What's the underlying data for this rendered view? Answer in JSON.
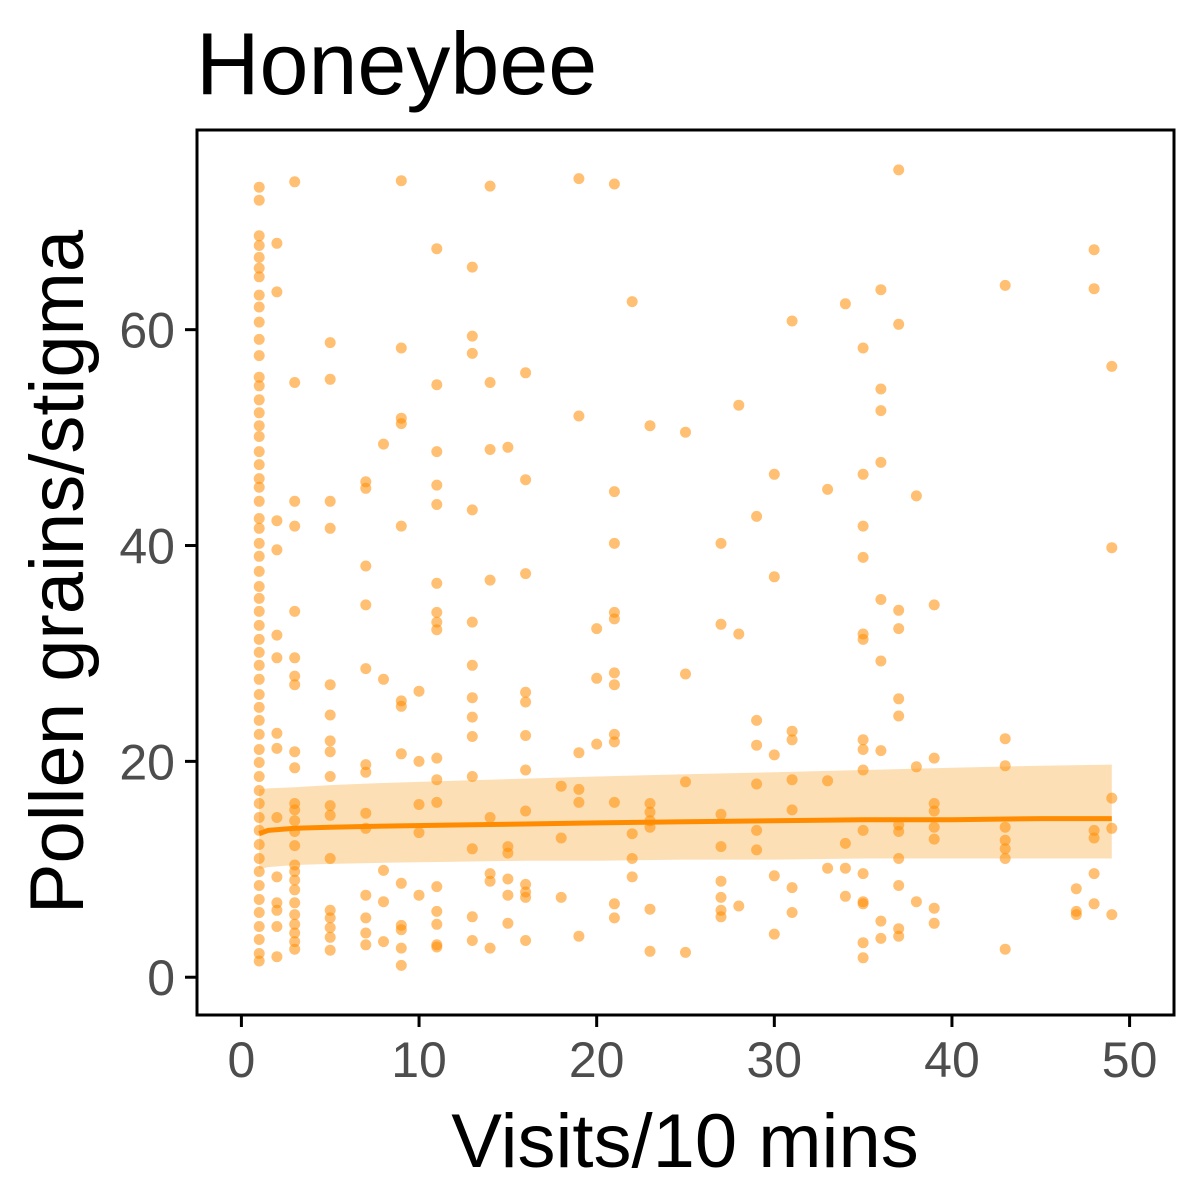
{
  "chart_data": {
    "type": "scatter",
    "title": "Honeybee",
    "xlabel": "Visits/10 mins",
    "ylabel": "Pollen grains/stigma",
    "xlim": [
      -2.5,
      52.5
    ],
    "ylim": [
      -3.5,
      78.5
    ],
    "xticks": [
      0,
      10,
      20,
      30,
      40,
      50
    ],
    "yticks": [
      0,
      20,
      40,
      60
    ],
    "xtick_labels": [
      "0",
      "10",
      "20",
      "30",
      "40",
      "50"
    ],
    "ytick_labels": [
      "0",
      "20",
      "40",
      "60"
    ],
    "grid": false,
    "colors": {
      "points": "#ff8c00",
      "fit_line": "#ff8c00",
      "ribbon": "#fdd9a8",
      "frame": "#000000"
    },
    "points": [
      [
        1,
        73.2
      ],
      [
        1,
        72
      ],
      [
        1,
        68.7
      ],
      [
        1,
        67.8
      ],
      [
        1,
        66.7
      ],
      [
        1,
        65.7
      ],
      [
        1,
        64.9
      ],
      [
        1,
        63.2
      ],
      [
        1,
        62.1
      ],
      [
        1,
        60.7
      ],
      [
        1,
        59.1
      ],
      [
        1,
        57.6
      ],
      [
        1,
        55.6
      ],
      [
        1,
        54.8
      ],
      [
        1,
        53.5
      ],
      [
        1,
        52.3
      ],
      [
        1,
        51.1
      ],
      [
        1,
        50.1
      ],
      [
        1,
        48.7
      ],
      [
        1,
        47.5
      ],
      [
        1,
        46.2
      ],
      [
        1,
        45.4
      ],
      [
        1,
        44.1
      ],
      [
        1,
        42.5
      ],
      [
        1,
        41.6
      ],
      [
        1,
        40.2
      ],
      [
        1,
        39
      ],
      [
        1,
        37.6
      ],
      [
        1,
        36.2
      ],
      [
        1,
        35.1
      ],
      [
        1,
        33.9
      ],
      [
        1,
        32.6
      ],
      [
        1,
        31.3
      ],
      [
        1,
        30.1
      ],
      [
        1,
        28.9
      ],
      [
        1,
        27.6
      ],
      [
        1,
        26.2
      ],
      [
        1,
        25
      ],
      [
        1,
        23.8
      ],
      [
        1,
        22.5
      ],
      [
        1,
        21.1
      ],
      [
        1,
        19.9
      ],
      [
        1,
        18.6
      ],
      [
        1,
        17.3
      ],
      [
        1,
        16.1
      ],
      [
        1,
        14.8
      ],
      [
        1,
        13.6
      ],
      [
        1,
        12.3
      ],
      [
        1,
        11
      ],
      [
        1,
        9.8
      ],
      [
        1,
        8.5
      ],
      [
        1,
        7.2
      ],
      [
        1,
        6
      ],
      [
        1,
        4.7
      ],
      [
        1,
        3.5
      ],
      [
        1,
        2.2
      ],
      [
        1,
        1.5
      ],
      [
        2,
        68
      ],
      [
        2,
        63.5
      ],
      [
        2,
        42.3
      ],
      [
        2,
        39.6
      ],
      [
        2,
        31.7
      ],
      [
        2,
        29.6
      ],
      [
        2,
        22.6
      ],
      [
        2,
        21.2
      ],
      [
        2,
        14.8
      ],
      [
        2,
        9.3
      ],
      [
        2,
        6.9
      ],
      [
        2,
        6.2
      ],
      [
        2,
        4.7
      ],
      [
        2,
        1.9
      ],
      [
        3,
        73.7
      ],
      [
        3,
        55.1
      ],
      [
        3,
        44.1
      ],
      [
        3,
        41.8
      ],
      [
        3,
        33.9
      ],
      [
        3,
        29.6
      ],
      [
        3,
        27.9
      ],
      [
        3,
        27.1
      ],
      [
        3,
        20.9
      ],
      [
        3,
        19.4
      ],
      [
        3,
        16.1
      ],
      [
        3,
        15.5
      ],
      [
        3,
        14.5
      ],
      [
        3,
        13.5
      ],
      [
        3,
        12.2
      ],
      [
        3,
        10.4
      ],
      [
        3,
        9.8
      ],
      [
        3,
        9
      ],
      [
        3,
        8.1
      ],
      [
        3,
        6.9
      ],
      [
        3,
        5.8
      ],
      [
        3,
        4.9
      ],
      [
        3,
        4.1
      ],
      [
        3,
        3.3
      ],
      [
        3,
        2.6
      ],
      [
        5,
        58.8
      ],
      [
        5,
        55.4
      ],
      [
        5,
        44.1
      ],
      [
        5,
        41.6
      ],
      [
        5,
        27.1
      ],
      [
        5,
        24.3
      ],
      [
        5,
        21.9
      ],
      [
        5,
        20.9
      ],
      [
        5,
        18.6
      ],
      [
        5,
        15.9
      ],
      [
        5,
        15
      ],
      [
        5,
        11
      ],
      [
        5,
        6.2
      ],
      [
        5,
        5.5
      ],
      [
        5,
        4.6
      ],
      [
        5,
        3.7
      ],
      [
        5,
        2.5
      ],
      [
        7,
        45.9
      ],
      [
        7,
        45.3
      ],
      [
        7,
        38.1
      ],
      [
        7,
        34.5
      ],
      [
        7,
        28.6
      ],
      [
        7,
        19.7
      ],
      [
        7,
        19
      ],
      [
        7,
        15.2
      ],
      [
        7,
        13.8
      ],
      [
        7,
        7.6
      ],
      [
        7,
        5.5
      ],
      [
        7,
        4.1
      ],
      [
        7,
        3
      ],
      [
        8,
        49.4
      ],
      [
        8,
        27.6
      ],
      [
        8,
        9.9
      ],
      [
        8,
        7
      ],
      [
        8,
        3.3
      ],
      [
        9,
        73.8
      ],
      [
        9,
        58.3
      ],
      [
        9,
        51.8
      ],
      [
        9,
        51.3
      ],
      [
        9,
        41.8
      ],
      [
        9,
        25.6
      ],
      [
        9,
        25.1
      ],
      [
        9,
        20.7
      ],
      [
        9,
        8.7
      ],
      [
        9,
        4.8
      ],
      [
        9,
        4.4
      ],
      [
        9,
        2.7
      ],
      [
        9,
        1.1
      ],
      [
        10,
        26.5
      ],
      [
        10,
        20
      ],
      [
        10,
        16
      ],
      [
        10,
        13.4
      ],
      [
        10,
        7.6
      ],
      [
        11,
        67.5
      ],
      [
        11,
        54.9
      ],
      [
        11,
        48.7
      ],
      [
        11,
        45.6
      ],
      [
        11,
        43.8
      ],
      [
        11,
        36.5
      ],
      [
        11,
        33.8
      ],
      [
        11,
        32.9
      ],
      [
        11,
        32.2
      ],
      [
        11,
        20.3
      ],
      [
        11,
        18.3
      ],
      [
        11,
        16.2
      ],
      [
        11,
        8.4
      ],
      [
        11,
        6.1
      ],
      [
        11,
        4.9
      ],
      [
        11,
        3
      ],
      [
        11,
        2.8
      ],
      [
        13,
        65.8
      ],
      [
        13,
        59.4
      ],
      [
        13,
        57.8
      ],
      [
        13,
        43.3
      ],
      [
        13,
        32.9
      ],
      [
        13,
        28.9
      ],
      [
        13,
        25.9
      ],
      [
        13,
        24.1
      ],
      [
        13,
        22.3
      ],
      [
        13,
        18.6
      ],
      [
        13,
        11.9
      ],
      [
        13,
        5.6
      ],
      [
        13,
        3.4
      ],
      [
        14,
        73.3
      ],
      [
        14,
        55.1
      ],
      [
        14,
        48.9
      ],
      [
        14,
        36.8
      ],
      [
        14,
        14.8
      ],
      [
        14,
        9.6
      ],
      [
        14,
        8.9
      ],
      [
        14,
        2.7
      ],
      [
        15,
        49.1
      ],
      [
        15,
        12.1
      ],
      [
        15,
        11.5
      ],
      [
        15,
        9.1
      ],
      [
        15,
        7.6
      ],
      [
        15,
        5
      ],
      [
        16,
        56
      ],
      [
        16,
        46.1
      ],
      [
        16,
        37.4
      ],
      [
        16,
        26.4
      ],
      [
        16,
        25.5
      ],
      [
        16,
        22.4
      ],
      [
        16,
        19.2
      ],
      [
        16,
        15.4
      ],
      [
        16,
        8.6
      ],
      [
        16,
        7.9
      ],
      [
        16,
        7.4
      ],
      [
        16,
        3.4
      ],
      [
        18,
        17.7
      ],
      [
        18,
        12.9
      ],
      [
        18,
        7.4
      ],
      [
        19,
        74
      ],
      [
        19,
        52
      ],
      [
        19,
        20.8
      ],
      [
        19,
        17.4
      ],
      [
        19,
        16.2
      ],
      [
        19,
        3.8
      ],
      [
        20,
        32.3
      ],
      [
        20,
        27.7
      ],
      [
        20,
        21.6
      ],
      [
        21,
        73.5
      ],
      [
        21,
        45
      ],
      [
        21,
        40.2
      ],
      [
        21,
        33.8
      ],
      [
        21,
        33.2
      ],
      [
        21,
        28.2
      ],
      [
        21,
        27.1
      ],
      [
        21,
        22.5
      ],
      [
        21,
        21.8
      ],
      [
        21,
        16.2
      ],
      [
        21,
        6.8
      ],
      [
        21,
        5.5
      ],
      [
        22,
        62.6
      ],
      [
        22,
        13.3
      ],
      [
        22,
        11
      ],
      [
        22,
        9.3
      ],
      [
        23,
        51.1
      ],
      [
        23,
        16.1
      ],
      [
        23,
        15.3
      ],
      [
        23,
        14.5
      ],
      [
        23,
        13.9
      ],
      [
        23,
        6.3
      ],
      [
        23,
        2.4
      ],
      [
        25,
        50.5
      ],
      [
        25,
        28.1
      ],
      [
        25,
        18.1
      ],
      [
        25,
        2.3
      ],
      [
        27,
        40.2
      ],
      [
        27,
        32.7
      ],
      [
        27,
        15.1
      ],
      [
        27,
        12.1
      ],
      [
        27,
        8.9
      ],
      [
        27,
        7.4
      ],
      [
        27,
        6.2
      ],
      [
        27,
        5.6
      ],
      [
        28,
        53
      ],
      [
        28,
        31.8
      ],
      [
        28,
        6.6
      ],
      [
        29,
        42.7
      ],
      [
        29,
        23.8
      ],
      [
        29,
        21.5
      ],
      [
        29,
        17.9
      ],
      [
        29,
        13.6
      ],
      [
        29,
        11.8
      ],
      [
        30,
        46.6
      ],
      [
        30,
        37.1
      ],
      [
        30,
        20.6
      ],
      [
        30,
        9.4
      ],
      [
        30,
        4
      ],
      [
        31,
        60.8
      ],
      [
        31,
        22.8
      ],
      [
        31,
        22
      ],
      [
        31,
        18.3
      ],
      [
        31,
        15.5
      ],
      [
        31,
        8.3
      ],
      [
        31,
        6
      ],
      [
        33,
        45.2
      ],
      [
        33,
        18.2
      ],
      [
        33,
        10.1
      ],
      [
        34,
        62.4
      ],
      [
        34,
        12.4
      ],
      [
        34,
        10.1
      ],
      [
        34,
        7.5
      ],
      [
        35,
        58.3
      ],
      [
        35,
        46.6
      ],
      [
        35,
        41.8
      ],
      [
        35,
        38.9
      ],
      [
        35,
        31.8
      ],
      [
        35,
        31.3
      ],
      [
        35,
        22
      ],
      [
        35,
        21.1
      ],
      [
        35,
        19.2
      ],
      [
        35,
        13.6
      ],
      [
        35,
        9.6
      ],
      [
        35,
        7
      ],
      [
        35,
        6.8
      ],
      [
        35,
        3.2
      ],
      [
        35,
        1.8
      ],
      [
        36,
        63.7
      ],
      [
        36,
        54.5
      ],
      [
        36,
        52.5
      ],
      [
        36,
        47.7
      ],
      [
        36,
        35
      ],
      [
        36,
        29.3
      ],
      [
        36,
        21
      ],
      [
        36,
        5.2
      ],
      [
        36,
        3.6
      ],
      [
        37,
        74.8
      ],
      [
        37,
        60.5
      ],
      [
        37,
        34
      ],
      [
        37,
        32.3
      ],
      [
        37,
        25.8
      ],
      [
        37,
        24.2
      ],
      [
        37,
        14.1
      ],
      [
        37,
        13.5
      ],
      [
        37,
        11
      ],
      [
        37,
        8.5
      ],
      [
        37,
        4.5
      ],
      [
        37,
        3.8
      ],
      [
        38,
        44.6
      ],
      [
        38,
        19.5
      ],
      [
        38,
        7
      ],
      [
        39,
        34.5
      ],
      [
        39,
        20.3
      ],
      [
        39,
        16.1
      ],
      [
        39,
        15.4
      ],
      [
        39,
        13.9
      ],
      [
        39,
        12.8
      ],
      [
        39,
        6.4
      ],
      [
        39,
        5
      ],
      [
        43,
        64.1
      ],
      [
        43,
        22.1
      ],
      [
        43,
        19.6
      ],
      [
        43,
        13.9
      ],
      [
        43,
        12.7
      ],
      [
        43,
        11.9
      ],
      [
        43,
        11
      ],
      [
        43,
        2.6
      ],
      [
        47,
        8.2
      ],
      [
        47,
        6.1
      ],
      [
        47,
        5.8
      ],
      [
        48,
        67.4
      ],
      [
        48,
        63.8
      ],
      [
        48,
        13.6
      ],
      [
        48,
        12.9
      ],
      [
        48,
        9.6
      ],
      [
        48,
        6.8
      ],
      [
        49,
        56.6
      ],
      [
        49,
        39.8
      ],
      [
        49,
        16.6
      ],
      [
        49,
        13.8
      ],
      [
        49,
        5.8
      ]
    ],
    "fit_line": {
      "x": [
        1,
        1.5,
        3,
        5,
        8,
        12,
        16,
        20,
        25,
        30,
        35,
        40,
        45,
        49
      ],
      "y": [
        13.3,
        13.6,
        13.8,
        13.9,
        14,
        14.1,
        14.2,
        14.3,
        14.4,
        14.5,
        14.6,
        14.6,
        14.7,
        14.7
      ],
      "lower": [
        10,
        10.2,
        10.4,
        10.5,
        10.6,
        10.7,
        10.8,
        10.8,
        10.9,
        10.9,
        11,
        11,
        11,
        11
      ],
      "upper": [
        17.4,
        17.5,
        17.6,
        17.8,
        18,
        18.2,
        18.4,
        18.6,
        18.8,
        19,
        19.2,
        19.4,
        19.6,
        19.7
      ]
    }
  }
}
